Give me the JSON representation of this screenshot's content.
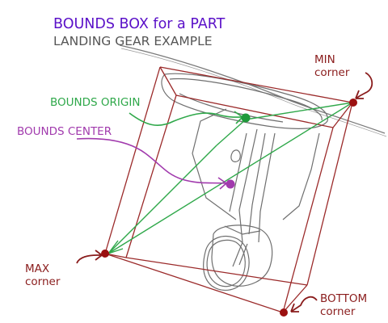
{
  "title": "BOUNDS BOX for a PART",
  "subtitle": "LANDING GEAR EXAMPLE",
  "labels": {
    "bounds_origin": "BOUNDS ORIGIN",
    "bounds_center": "BOUNDS CENTER",
    "min_corner": {
      "line1": "MIN",
      "line2": "corner"
    },
    "max_corner": {
      "line1": "MAX",
      "line2": "corner"
    },
    "bottom_corner": {
      "line1": "BOTTOM",
      "line2": "corner"
    }
  },
  "colors": {
    "title": "#5a10c8",
    "subtitle": "#555555",
    "box": "#9b2a2a",
    "corner_dot": "#9b1010",
    "origin": "#2fa84a",
    "center": "#a13aad",
    "sketch": "#707070"
  }
}
